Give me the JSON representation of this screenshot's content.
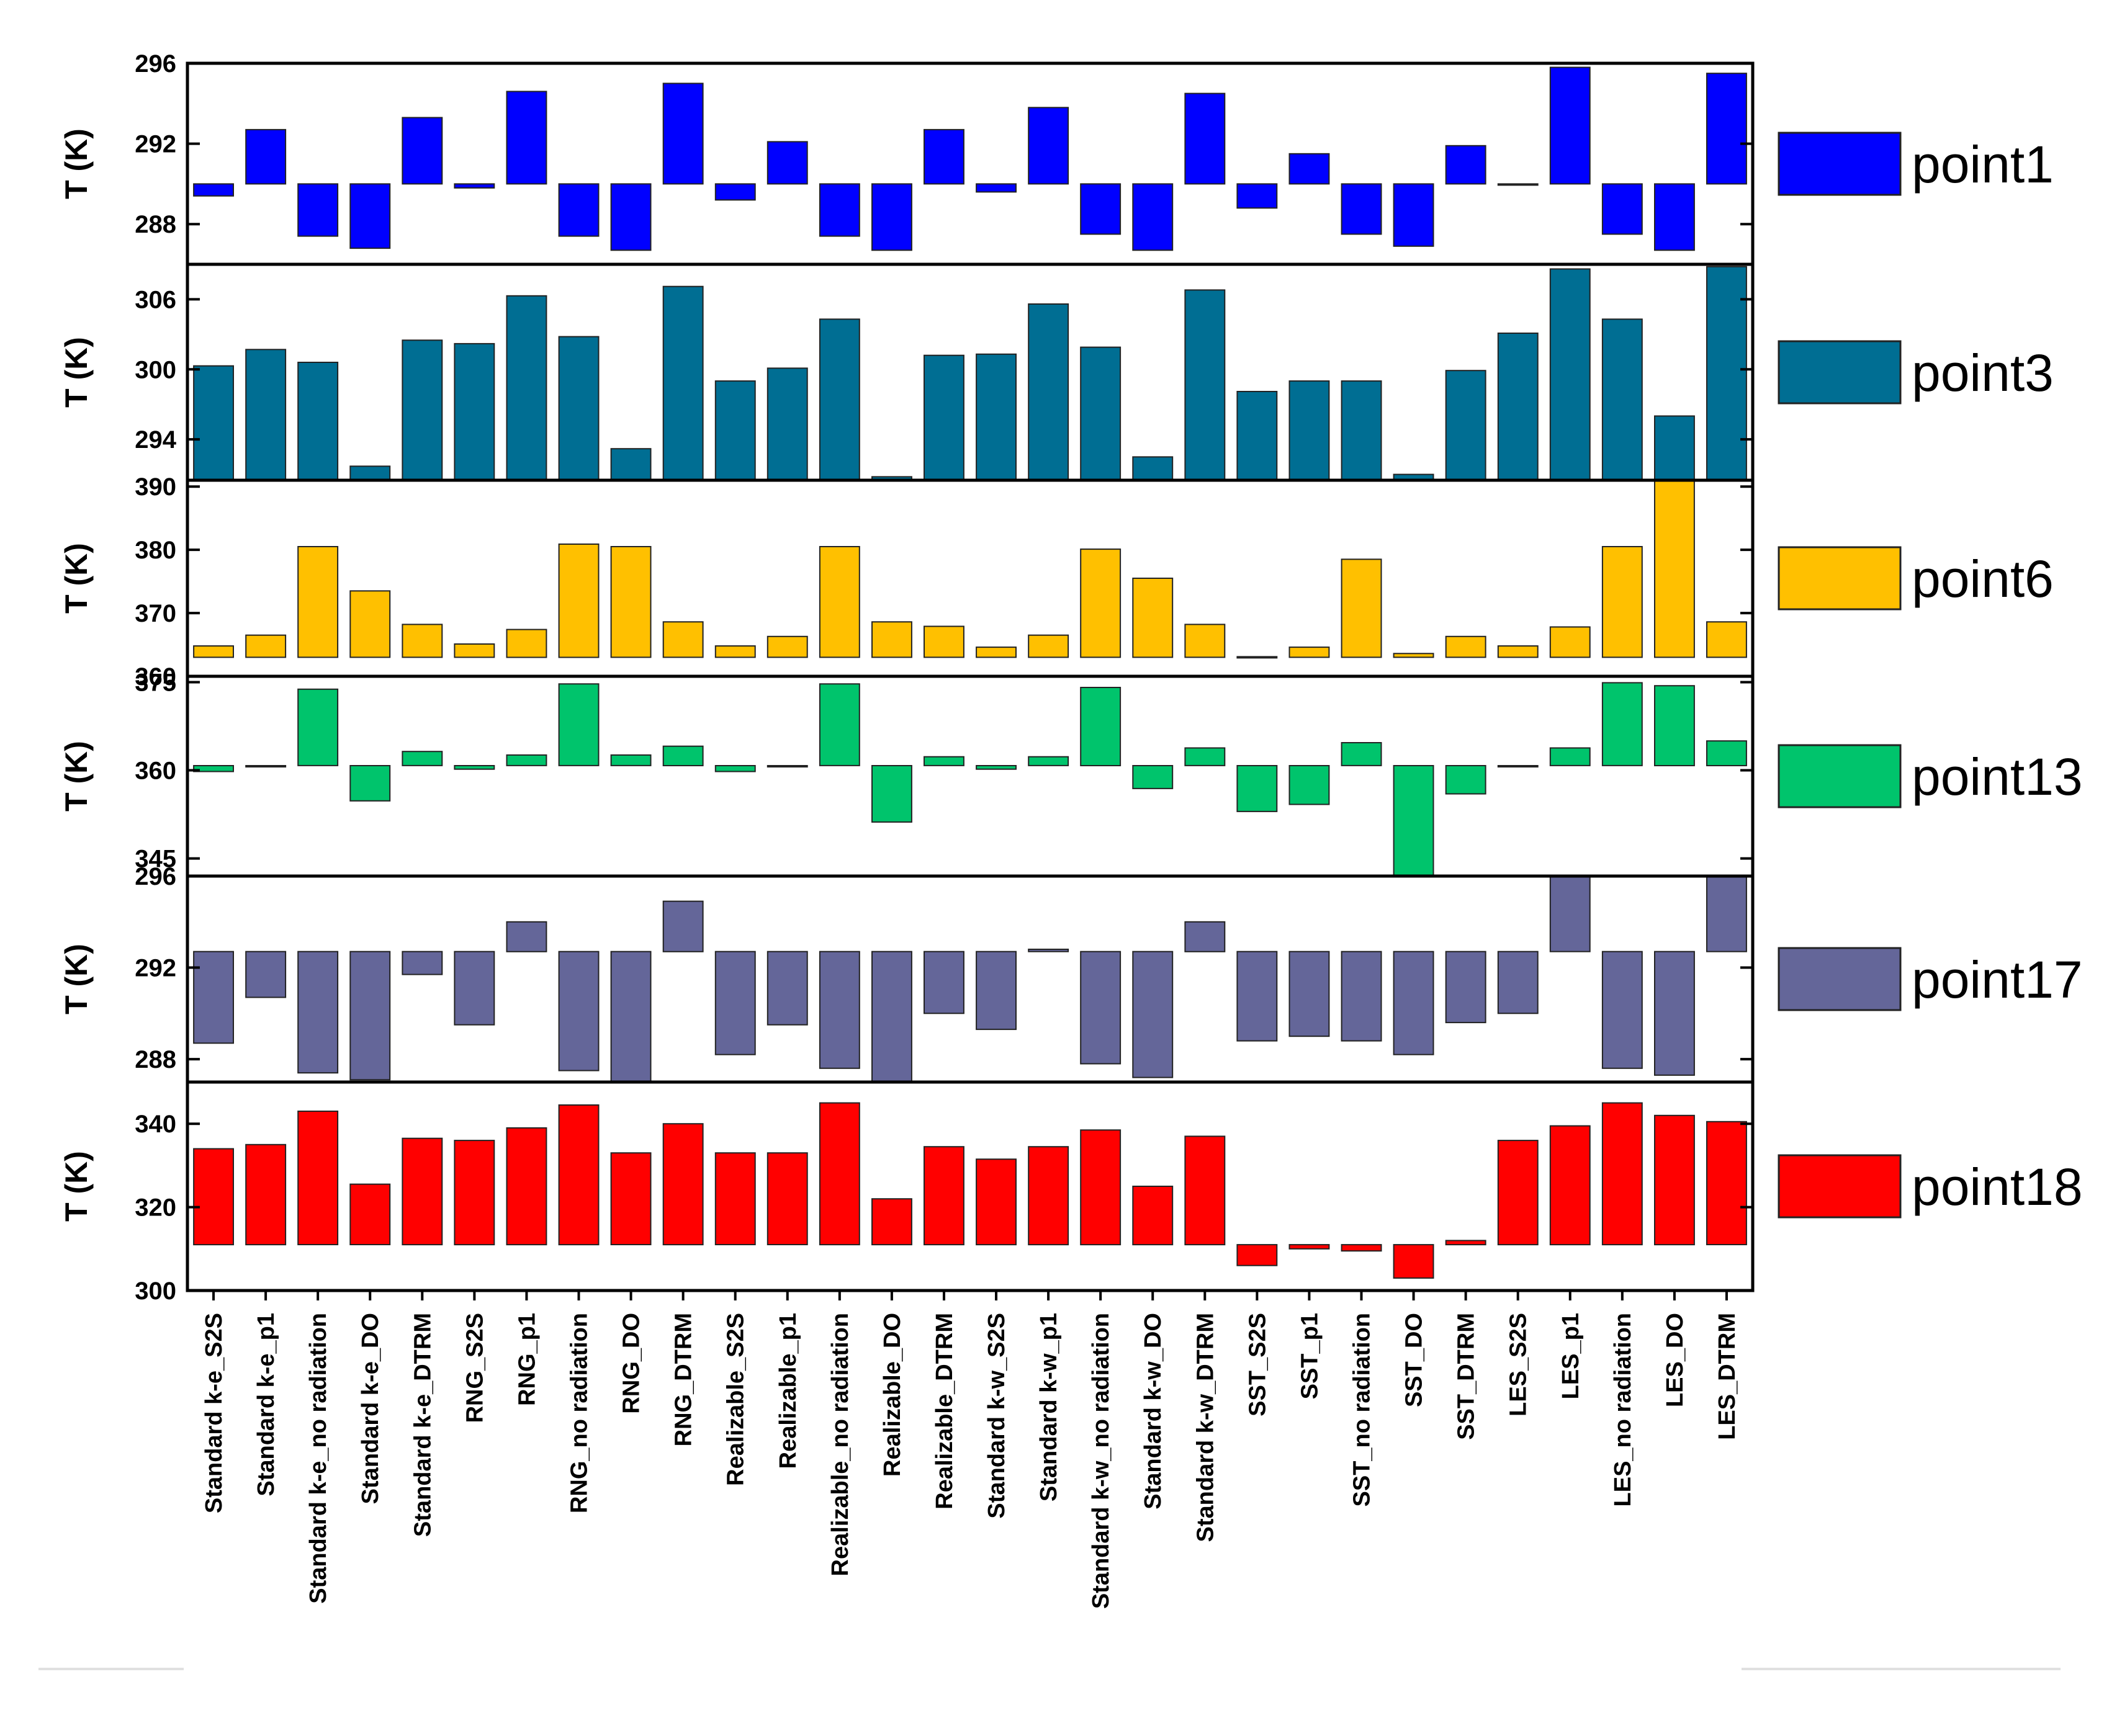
{
  "chart_data": {
    "type": "bar",
    "title": "",
    "xlabel": "",
    "ylabel": "T (K)",
    "grid": false,
    "legend_position": "right",
    "categories": [
      "Standard k-e_S2S",
      "Standard k-e_p1",
      "Standard k-e_no radiation",
      "Standard k-e_DO",
      "Standard k-e_DTRM",
      "RNG_S2S",
      "RNG_p1",
      "RNG_no radiation",
      "RNG_DO",
      "RNG_DTRM",
      "Realizable_S2S",
      "Realizable_p1",
      "Realizable_no radiation",
      "Realizable_DO",
      "Realizable_DTRM",
      "Standard k-w_S2S",
      "Standard k-w_p1",
      "Standard k-w_no radiation",
      "Standard k-w_DO",
      "Standard k-w_DTRM",
      "SST_S2S",
      "SST_p1",
      "SST_no radiation",
      "SST_DO",
      "SST_DTRM",
      "LES_S2S",
      "LES_p1",
      "LES_no radiation",
      "LES_DO",
      "LES_DTRM"
    ],
    "series": [
      {
        "name": "point1",
        "color": "#0000FF",
        "ylim": [
          286,
          296
        ],
        "ticks": [
          288,
          292,
          296
        ],
        "baseline": 290,
        "values": [
          289.4,
          292.7,
          287.4,
          286.8,
          293.3,
          289.8,
          294.6,
          287.4,
          286.7,
          295.0,
          289.2,
          292.1,
          287.4,
          286.7,
          292.7,
          289.6,
          293.8,
          287.5,
          286.7,
          294.5,
          288.8,
          291.5,
          287.5,
          286.9,
          291.9,
          290.0,
          295.8,
          287.5,
          286.7,
          295.5
        ]
      },
      {
        "name": "point3",
        "color": "#006E93",
        "ylim": [
          290.5,
          309
        ],
        "ticks": [
          294,
          300,
          306
        ],
        "baseline": 290.5,
        "values": [
          300.3,
          301.7,
          300.6,
          291.7,
          302.5,
          302.2,
          306.3,
          302.8,
          293.2,
          307.1,
          299.0,
          300.1,
          304.3,
          290.8,
          301.2,
          301.3,
          305.6,
          301.9,
          292.5,
          306.8,
          298.1,
          299.0,
          299.0,
          291.0,
          299.9,
          303.1,
          308.6,
          304.3,
          296.0,
          308.8
        ]
      },
      {
        "name": "point6",
        "color": "#FFC000",
        "ylim": [
          360,
          391
        ],
        "ticks": [
          360,
          370,
          380,
          390
        ],
        "baseline": 363,
        "values": [
          364.8,
          366.5,
          380.5,
          373.5,
          368.2,
          365.1,
          367.4,
          380.9,
          380.5,
          368.6,
          364.8,
          366.3,
          380.5,
          368.6,
          367.9,
          364.6,
          366.5,
          380.1,
          375.5,
          368.2,
          363.1,
          364.6,
          378.5,
          363.6,
          366.3,
          364.8,
          367.8,
          380.5,
          391.0,
          368.6
        ]
      },
      {
        "name": "point13",
        "color": "#00C46C",
        "ylim": [
          342,
          376
        ],
        "ticks": [
          345,
          360,
          375
        ],
        "baseline": 360.8,
        "values": [
          359.8,
          360.8,
          373.8,
          354.8,
          363.2,
          360.2,
          362.6,
          374.7,
          362.6,
          364.1,
          359.8,
          360.6,
          374.7,
          351.2,
          362.3,
          360.2,
          362.3,
          374.1,
          356.9,
          363.8,
          353.0,
          354.2,
          364.7,
          341.0,
          356.0,
          360.8,
          363.8,
          374.9,
          374.4,
          365.0
        ]
      },
      {
        "name": "point17",
        "color": "#646699",
        "ylim": [
          287,
          296
        ],
        "ticks": [
          288,
          292,
          296
        ],
        "baseline": 292.7,
        "values": [
          288.7,
          290.7,
          287.4,
          287.1,
          291.7,
          289.5,
          294.0,
          287.5,
          287.0,
          294.9,
          288.2,
          289.5,
          287.6,
          287.0,
          290.0,
          289.3,
          292.8,
          287.8,
          287.2,
          294.0,
          288.8,
          289.0,
          288.8,
          288.2,
          289.6,
          290.0,
          296.0,
          287.6,
          287.3,
          296.1
        ]
      },
      {
        "name": "point18",
        "color": "#FF0000",
        "ylim": [
          300,
          350
        ],
        "ticks": [
          300,
          320,
          340
        ],
        "baseline": 311,
        "values": [
          334.0,
          335.0,
          343.0,
          325.5,
          336.5,
          336.0,
          339.0,
          344.5,
          333.0,
          340.0,
          333.0,
          333.0,
          345.0,
          322.0,
          334.5,
          331.5,
          334.5,
          338.5,
          325.0,
          337.0,
          306.0,
          310.0,
          309.5,
          303.0,
          312.0,
          336.0,
          339.5,
          345.0,
          342.0,
          340.5
        ]
      }
    ]
  }
}
